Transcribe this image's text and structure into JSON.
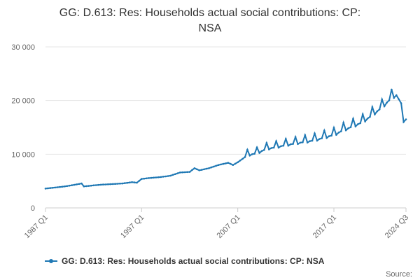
{
  "chart_data": {
    "type": "line",
    "title_line1": "GG: D.613: Res: Households actual social contributions: CP:",
    "title_line2": "NSA",
    "xlabel": "",
    "ylabel": "",
    "ylim": [
      0,
      30000
    ],
    "y_ticks": [
      {
        "value": 0,
        "label": "0"
      },
      {
        "value": 10000,
        "label": "10 000"
      },
      {
        "value": 20000,
        "label": "20 000"
      },
      {
        "value": 30000,
        "label": "30 000"
      }
    ],
    "x_ticks": [
      "1987 Q1",
      "1997 Q1",
      "2007 Q1",
      "2017 Q1",
      "2024 Q3"
    ],
    "x_first": "1987 Q1",
    "x_last": "2024 Q3",
    "grid": true,
    "legend_position": "bottom",
    "series": [
      {
        "name": "GG: D.613: Res: Households actual social contributions: CP: NSA",
        "color": "#1f78b4",
        "anchors": [
          [
            "1987 Q1",
            3600
          ],
          [
            "1988 Q1",
            3800
          ],
          [
            "1989 Q1",
            4000
          ],
          [
            "1990 Q1",
            4300
          ],
          [
            "1990 Q4",
            4550
          ],
          [
            "1991 Q1",
            4000
          ],
          [
            "1992 Q1",
            4200
          ],
          [
            "1993 Q1",
            4350
          ],
          [
            "1994 Q1",
            4450
          ],
          [
            "1995 Q1",
            4550
          ],
          [
            "1996 Q1",
            4800
          ],
          [
            "1996 Q3",
            4700
          ],
          [
            "1997 Q1",
            5400
          ],
          [
            "1998 Q1",
            5600
          ],
          [
            "1999 Q1",
            5750
          ],
          [
            "2000 Q1",
            6000
          ],
          [
            "2001 Q1",
            6600
          ],
          [
            "2002 Q1",
            6700
          ],
          [
            "2002 Q3",
            7400
          ],
          [
            "2003 Q1",
            7000
          ],
          [
            "2004 Q1",
            7400
          ],
          [
            "2005 Q1",
            8000
          ],
          [
            "2006 Q1",
            8400
          ],
          [
            "2006 Q3",
            8000
          ],
          [
            "2007 Q1",
            8500
          ],
          [
            "2008 Q1",
            9800
          ],
          [
            "2009 Q1",
            10200
          ],
          [
            "2010 Q1",
            11000
          ],
          [
            "2011 Q1",
            11300
          ],
          [
            "2012 Q1",
            11700
          ],
          [
            "2013 Q1",
            12000
          ],
          [
            "2014 Q1",
            12300
          ],
          [
            "2015 Q1",
            12600
          ],
          [
            "2016 Q1",
            13100
          ],
          [
            "2017 Q1",
            13600
          ],
          [
            "2018 Q1",
            14500
          ],
          [
            "2019 Q1",
            15200
          ],
          [
            "2020 Q1",
            16000
          ],
          [
            "2021 Q1",
            17300
          ],
          [
            "2022 Q1",
            18700
          ],
          [
            "2023 Q1",
            20500
          ],
          [
            "2023 Q3",
            21000
          ],
          [
            "2024 Q1",
            19500
          ],
          [
            "2024 Q2",
            16000
          ],
          [
            "2024 Q3",
            16500
          ]
        ]
      }
    ],
    "seasonal_peak_amplitude": 1300
  },
  "source_label": "Source:"
}
